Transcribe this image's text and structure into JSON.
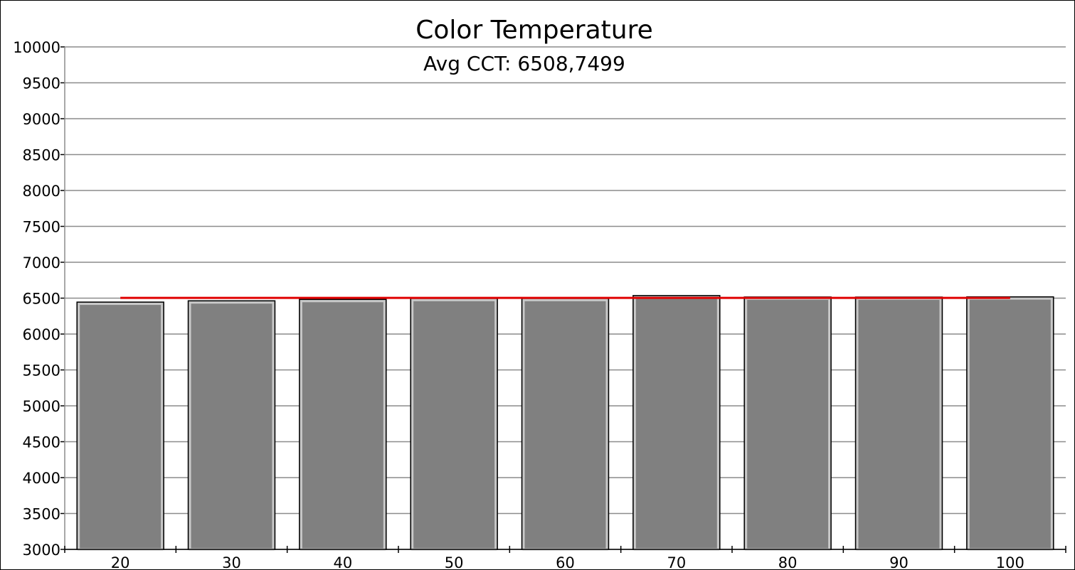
{
  "chart_data": {
    "type": "bar",
    "title": "Color Temperature",
    "subtitle": "Avg CCT: 6508,7499",
    "categories": [
      "20",
      "30",
      "40",
      "50",
      "60",
      "70",
      "80",
      "90",
      "100"
    ],
    "values": [
      6445,
      6463,
      6483,
      6497,
      6497,
      6536,
      6516,
      6515,
      6518
    ],
    "reference_line": {
      "value": 6504,
      "color": "#e00000"
    },
    "ylim": [
      3000,
      10000
    ],
    "y_ticks": [
      "3000",
      "3500",
      "4000",
      "4500",
      "5000",
      "5500",
      "6000",
      "6500",
      "7000",
      "7500",
      "8000",
      "8500",
      "9000",
      "9500",
      "10000"
    ],
    "grid": true,
    "bar_color": "#808080",
    "bar_inner_border_color": "#c8c8c8",
    "bar_outer_border_color": "#000000"
  }
}
